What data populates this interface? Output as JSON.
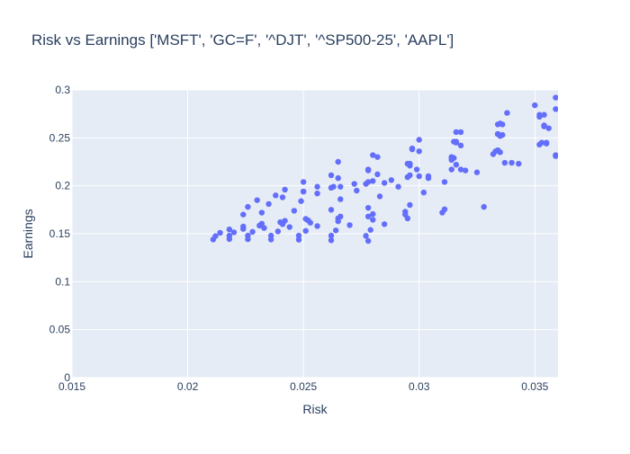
{
  "chart_data": {
    "type": "scatter",
    "title": "Risk vs Earnings ['MSFT', 'GC=F', '^DJT', '^SP500-25', 'AAPL']",
    "xlabel": "Risk",
    "ylabel": "Earnings",
    "xlim": [
      0.015,
      0.036
    ],
    "ylim": [
      0,
      0.3
    ],
    "x_ticks": [
      {
        "value": 0.015,
        "label": "0.015"
      },
      {
        "value": 0.02,
        "label": "0.02"
      },
      {
        "value": 0.025,
        "label": "0.025"
      },
      {
        "value": 0.03,
        "label": "0.03"
      },
      {
        "value": 0.035,
        "label": "0.035"
      }
    ],
    "y_ticks": [
      {
        "value": 0,
        "label": "0"
      },
      {
        "value": 0.05,
        "label": "0.05"
      },
      {
        "value": 0.1,
        "label": "0.1"
      },
      {
        "value": 0.15,
        "label": "0.15"
      },
      {
        "value": 0.2,
        "label": "0.2"
      },
      {
        "value": 0.25,
        "label": "0.25"
      },
      {
        "value": 0.3,
        "label": "0.3"
      }
    ],
    "grid": true,
    "legend": false,
    "marker_color": "#636efa",
    "plot_background": "#e5ecf6",
    "grid_color": "#ffffff",
    "text_color": "#2a3f5f",
    "series": [
      {
        "points": [
          [
            0.0211,
            0.144
          ],
          [
            0.0212,
            0.1475
          ],
          [
            0.0214,
            0.151
          ],
          [
            0.0218,
            0.1545
          ],
          [
            0.0224,
            0.1575
          ],
          [
            0.0232,
            0.1605
          ],
          [
            0.0242,
            0.1635
          ],
          [
            0.0218,
            0.1445
          ],
          [
            0.0218,
            0.148
          ],
          [
            0.022,
            0.1515
          ],
          [
            0.0224,
            0.155
          ],
          [
            0.0231,
            0.1585
          ],
          [
            0.024,
            0.162
          ],
          [
            0.0251,
            0.1655
          ],
          [
            0.0226,
            0.1443
          ],
          [
            0.0226,
            0.148
          ],
          [
            0.0228,
            0.152
          ],
          [
            0.0233,
            0.156
          ],
          [
            0.0241,
            0.16
          ],
          [
            0.0252,
            0.164
          ],
          [
            0.0266,
            0.168
          ],
          [
            0.0236,
            0.144
          ],
          [
            0.0236,
            0.148
          ],
          [
            0.0239,
            0.1525
          ],
          [
            0.0244,
            0.157
          ],
          [
            0.0253,
            0.1615
          ],
          [
            0.0265,
            0.166
          ],
          [
            0.028,
            0.1705
          ],
          [
            0.0248,
            0.1438
          ],
          [
            0.0248,
            0.148
          ],
          [
            0.0251,
            0.153
          ],
          [
            0.0256,
            0.158
          ],
          [
            0.0265,
            0.163
          ],
          [
            0.0278,
            0.168
          ],
          [
            0.0294,
            0.173
          ],
          [
            0.0262,
            0.1432
          ],
          [
            0.0262,
            0.148
          ],
          [
            0.0264,
            0.1535
          ],
          [
            0.027,
            0.159
          ],
          [
            0.028,
            0.1645
          ],
          [
            0.0294,
            0.17
          ],
          [
            0.0311,
            0.1755
          ],
          [
            0.0278,
            0.1425
          ],
          [
            0.0277,
            0.1478
          ],
          [
            0.0279,
            0.154
          ],
          [
            0.0285,
            0.16
          ],
          [
            0.0295,
            0.166
          ],
          [
            0.031,
            0.172
          ],
          [
            0.0328,
            0.178
          ],
          [
            0.0224,
            0.17
          ],
          [
            0.0226,
            0.178
          ],
          [
            0.023,
            0.185
          ],
          [
            0.0238,
            0.19
          ],
          [
            0.025,
            0.194
          ],
          [
            0.0262,
            0.198
          ],
          [
            0.0277,
            0.202
          ],
          [
            0.0232,
            0.172
          ],
          [
            0.0235,
            0.181
          ],
          [
            0.0241,
            0.188
          ],
          [
            0.025,
            0.194
          ],
          [
            0.0263,
            0.199
          ],
          [
            0.0278,
            0.204
          ],
          [
            0.0295,
            0.209
          ],
          [
            0.0246,
            0.174
          ],
          [
            0.0249,
            0.184
          ],
          [
            0.0256,
            0.192
          ],
          [
            0.0266,
            0.199
          ],
          [
            0.028,
            0.205
          ],
          [
            0.0296,
            0.211
          ],
          [
            0.0314,
            0.217
          ],
          [
            0.0262,
            0.175
          ],
          [
            0.0266,
            0.186
          ],
          [
            0.0273,
            0.195
          ],
          [
            0.0285,
            0.203
          ],
          [
            0.03,
            0.21
          ],
          [
            0.0318,
            0.217
          ],
          [
            0.0337,
            0.224
          ],
          [
            0.0278,
            0.177
          ],
          [
            0.0283,
            0.189
          ],
          [
            0.0291,
            0.199
          ],
          [
            0.0304,
            0.208
          ],
          [
            0.032,
            0.216
          ],
          [
            0.034,
            0.224
          ],
          [
            0.0359,
            0.232
          ],
          [
            0.0296,
            0.18
          ],
          [
            0.0302,
            0.193
          ],
          [
            0.0311,
            0.204
          ],
          [
            0.0325,
            0.214
          ],
          [
            0.0343,
            0.223
          ],
          [
            0.0359,
            0.231
          ],
          [
            0.0242,
            0.196
          ],
          [
            0.025,
            0.204
          ],
          [
            0.0262,
            0.211
          ],
          [
            0.0278,
            0.217
          ],
          [
            0.0296,
            0.223
          ],
          [
            0.0315,
            0.229
          ],
          [
            0.0335,
            0.235
          ],
          [
            0.0256,
            0.199
          ],
          [
            0.0265,
            0.208
          ],
          [
            0.0278,
            0.216
          ],
          [
            0.0295,
            0.223
          ],
          [
            0.0314,
            0.23
          ],
          [
            0.0334,
            0.237
          ],
          [
            0.0355,
            0.244
          ],
          [
            0.0272,
            0.202
          ],
          [
            0.0282,
            0.212
          ],
          [
            0.0296,
            0.221
          ],
          [
            0.0314,
            0.229
          ],
          [
            0.0334,
            0.237
          ],
          [
            0.0355,
            0.245
          ],
          [
            0.0288,
            0.206
          ],
          [
            0.0299,
            0.217
          ],
          [
            0.0314,
            0.227
          ],
          [
            0.0333,
            0.236
          ],
          [
            0.0353,
            0.245
          ],
          [
            0.0304,
            0.21
          ],
          [
            0.0316,
            0.222
          ],
          [
            0.0332,
            0.233
          ],
          [
            0.0352,
            0.243
          ],
          [
            0.0265,
            0.225
          ],
          [
            0.028,
            0.232
          ],
          [
            0.0297,
            0.239
          ],
          [
            0.0316,
            0.246
          ],
          [
            0.0336,
            0.253
          ],
          [
            0.0356,
            0.26
          ],
          [
            0.0282,
            0.23
          ],
          [
            0.0297,
            0.238
          ],
          [
            0.0315,
            0.246
          ],
          [
            0.0334,
            0.254
          ],
          [
            0.0354,
            0.262
          ],
          [
            0.03,
            0.236
          ],
          [
            0.0316,
            0.245
          ],
          [
            0.0334,
            0.254
          ],
          [
            0.0354,
            0.263
          ],
          [
            0.0318,
            0.242
          ],
          [
            0.0335,
            0.252
          ],
          [
            0.0354,
            0.262
          ],
          [
            0.03,
            0.248
          ],
          [
            0.0316,
            0.256
          ],
          [
            0.0334,
            0.264
          ],
          [
            0.0352,
            0.272
          ],
          [
            0.0318,
            0.256
          ],
          [
            0.0335,
            0.265
          ],
          [
            0.0354,
            0.274
          ],
          [
            0.0336,
            0.264
          ],
          [
            0.0352,
            0.274
          ],
          [
            0.0359,
            0.28
          ],
          [
            0.0338,
            0.276
          ],
          [
            0.035,
            0.284
          ],
          [
            0.0359,
            0.292
          ]
        ]
      }
    ]
  }
}
